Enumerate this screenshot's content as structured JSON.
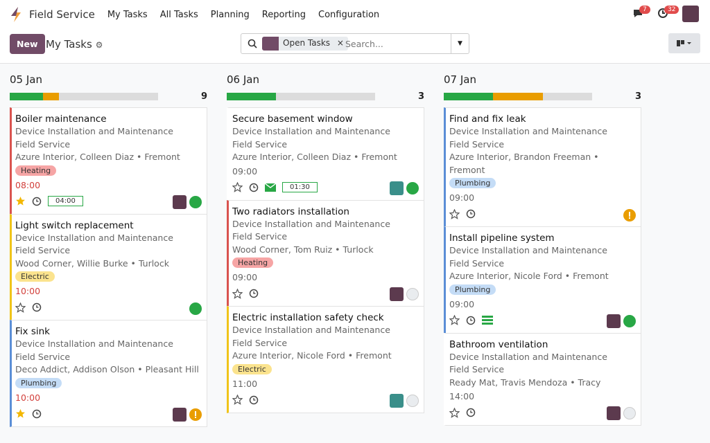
{
  "navbar": {
    "app": "Field Service",
    "menu": [
      "My Tasks",
      "All Tasks",
      "Planning",
      "Reporting",
      "Configuration"
    ],
    "messages": 7,
    "activities": 32
  },
  "control": {
    "new": "New",
    "title": "My Tasks",
    "facet": "Open Tasks",
    "search": "Search..."
  },
  "columns": [
    {
      "date": "05 Jan",
      "count": 9,
      "progress": [
        {
          "color": "#28a745",
          "value": 2
        },
        {
          "color": "#e99d00",
          "value": 1
        },
        {
          "color": "#dcdcdc",
          "value": 6
        }
      ],
      "cards": [
        {
          "title": "Boiler maintenance",
          "project": "Device Installation and Maintenance",
          "company": "Field Service",
          "customer": "Azure Interior, Colleen Diaz • Fremont",
          "tag": "Heating",
          "tag_color": "#f6a5a5",
          "time": "08:00",
          "late": true,
          "border": "#d9534f",
          "starred": true,
          "timer": "04:00",
          "avatar": "#5c3a4e",
          "state": "green"
        },
        {
          "title": "Light switch replacement",
          "project": "Device Installation and Maintenance",
          "company": "Field Service",
          "customer": "Wood Corner, Willie Burke • Turlock",
          "tag": "Electric",
          "tag_color": "#fbe38e",
          "time": "10:00",
          "late": true,
          "border": "#f0c419",
          "starred": false,
          "state": "green"
        },
        {
          "title": "Fix sink",
          "project": "Device Installation and Maintenance",
          "company": "Field Service",
          "customer": "Deco Addict, Addison Olson • Pleasant Hill",
          "tag": "Plumbing",
          "tag_color": "#c4dcf6",
          "time": "10:00",
          "late": true,
          "border": "#5b8ed6",
          "starred": true,
          "avatar": "#5c3a4e",
          "state": "warning"
        }
      ]
    },
    {
      "date": "06 Jan",
      "count": 3,
      "progress": [
        {
          "color": "#28a745",
          "value": 1
        },
        {
          "color": "#dcdcdc",
          "value": 2
        }
      ],
      "cards": [
        {
          "title": "Secure basement window",
          "project": "Device Installation and Maintenance",
          "company": "Field Service",
          "customer": "Azure Interior, Colleen Diaz • Fremont",
          "time": "09:00",
          "late": false,
          "starred": false,
          "mail": true,
          "timer": "01:30",
          "avatar": "#3a8f8a",
          "state": "green"
        },
        {
          "title": "Two radiators installation",
          "project": "Device Installation and Maintenance",
          "company": "Field Service",
          "customer": "Wood Corner, Tom Ruiz • Turlock",
          "tag": "Heating",
          "tag_color": "#f6a5a5",
          "time": "09:00",
          "late": false,
          "border": "#d9534f",
          "starred": false,
          "avatar": "#5c3a4e",
          "state": "grey"
        },
        {
          "title": "Electric installation safety check",
          "project": "Device Installation and Maintenance",
          "company": "Field Service",
          "customer": "Azure Interior, Nicole Ford • Fremont",
          "tag": "Electric",
          "tag_color": "#fbe38e",
          "time": "11:00",
          "late": false,
          "border": "#f0c419",
          "starred": false,
          "avatar": "#3a8f8a",
          "state": "grey"
        }
      ]
    },
    {
      "date": "07 Jan",
      "count": 3,
      "progress": [
        {
          "color": "#28a745",
          "value": 1
        },
        {
          "color": "#e99d00",
          "value": 1
        },
        {
          "color": "#dcdcdc",
          "value": 1
        }
      ],
      "cards": [
        {
          "title": "Find and fix leak",
          "project": "Device Installation and Maintenance",
          "company": "Field Service",
          "customer": "Azure Interior, Brandon Freeman • Fremont",
          "tag": "Plumbing",
          "tag_color": "#c4dcf6",
          "time": "09:00",
          "late": false,
          "border": "#5b8ed6",
          "starred": false,
          "state": "warning"
        },
        {
          "title": "Install pipeline system",
          "project": "Device Installation and Maintenance",
          "company": "Field Service",
          "customer": "Azure Interior, Nicole Ford • Fremont",
          "tag": "Plumbing",
          "tag_color": "#c4dcf6",
          "time": "09:00",
          "late": false,
          "border": "#5b8ed6",
          "starred": false,
          "list": true,
          "avatar": "#5c3a4e",
          "state": "green"
        },
        {
          "title": "Bathroom ventilation",
          "project": "Device Installation and Maintenance",
          "company": "Field Service",
          "customer": "Ready Mat, Travis Mendoza • Tracy",
          "time": "14:00",
          "late": false,
          "starred": false,
          "avatar": "#5c3a4e",
          "state": "grey"
        }
      ]
    }
  ]
}
